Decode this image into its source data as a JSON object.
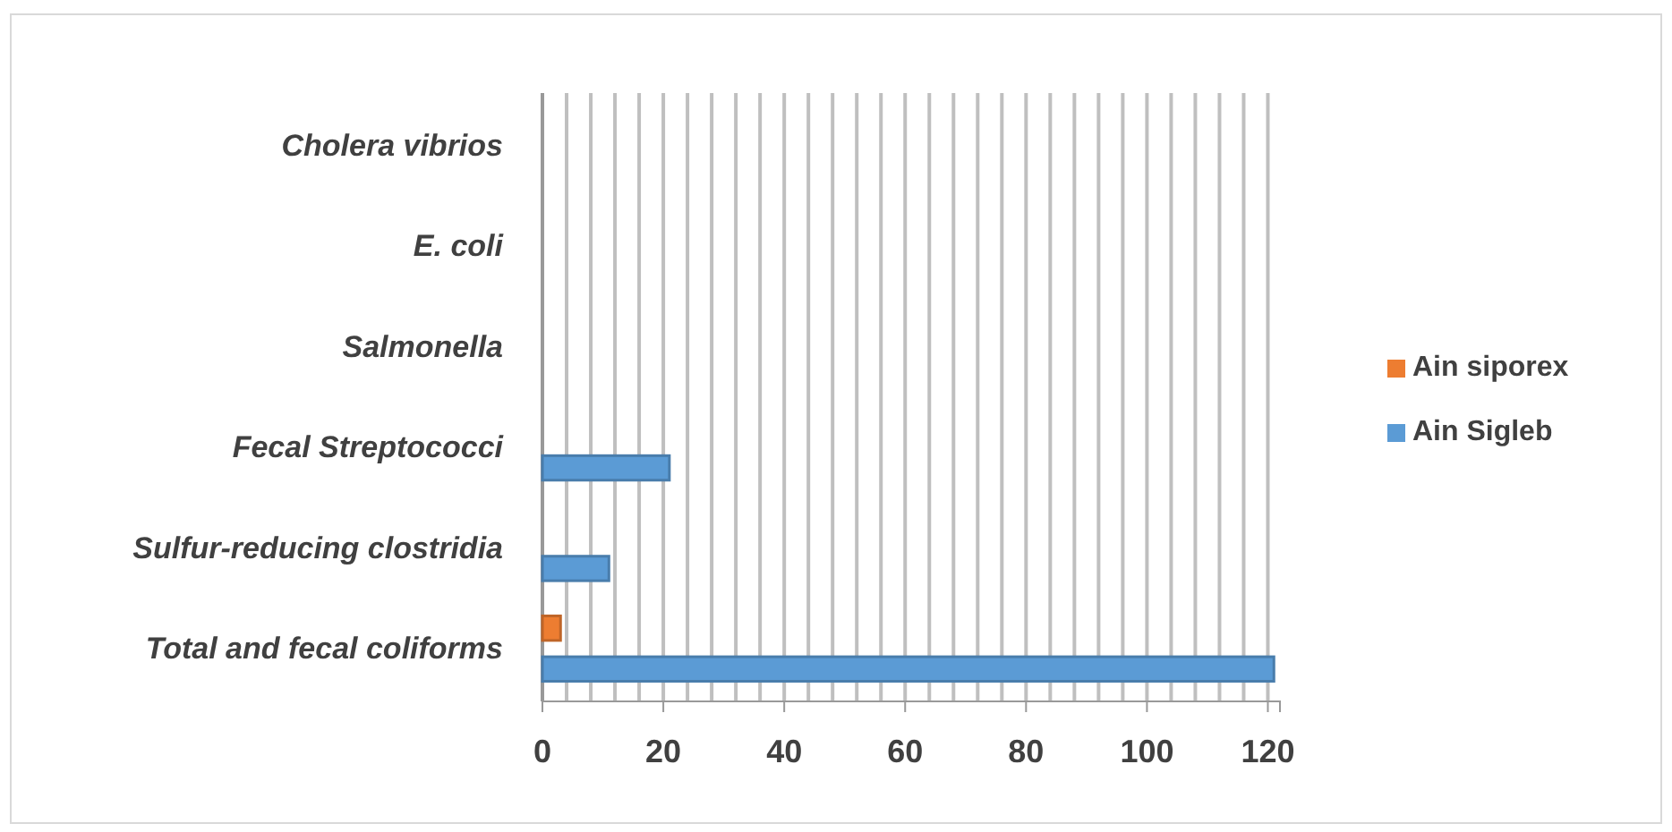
{
  "chart_data": {
    "type": "bar",
    "orientation": "horizontal",
    "categories": [
      "Cholera vibrios",
      "E. coli",
      "Salmonella",
      "Fecal Streptococci",
      "Sulfur-reducing clostridia",
      "Total and fecal coliforms"
    ],
    "series": [
      {
        "name": "Ain siporex",
        "color": "#ed7d31",
        "values": [
          0,
          0,
          0,
          0,
          0,
          3
        ]
      },
      {
        "name": "Ain Sigleb",
        "color": "#5b9bd5",
        "values": [
          0,
          0,
          0,
          21,
          11,
          121
        ]
      }
    ],
    "xlim": [
      0,
      122
    ],
    "xticks": [
      0,
      {
        "value": 4,
        "label": null
      },
      {
        "value": 8,
        "label": null
      },
      {
        "value": 12,
        "label": null
      },
      {
        "value": 16,
        "label": null
      },
      20,
      {
        "value": 24,
        "label": null
      },
      {
        "value": 28,
        "label": null
      },
      {
        "value": 32,
        "label": null
      },
      {
        "value": 36,
        "label": null
      },
      40,
      {
        "value": 44,
        "label": null
      },
      {
        "value": 48,
        "label": null
      },
      {
        "value": 52,
        "label": null
      },
      {
        "value": 56,
        "label": null
      },
      60,
      {
        "value": 64,
        "label": null
      },
      {
        "value": 68,
        "label": null
      },
      {
        "value": 72,
        "label": null
      },
      {
        "value": 76,
        "label": null
      },
      80,
      {
        "value": 84,
        "label": null
      },
      {
        "value": 88,
        "label": null
      },
      {
        "value": 92,
        "label": null
      },
      {
        "value": 96,
        "label": null
      },
      100,
      {
        "value": 104,
        "label": null
      },
      {
        "value": 108,
        "label": null
      },
      {
        "value": 112,
        "label": null
      },
      {
        "value": 116,
        "label": null
      },
      120
    ],
    "grid": "x",
    "legend": "right"
  }
}
